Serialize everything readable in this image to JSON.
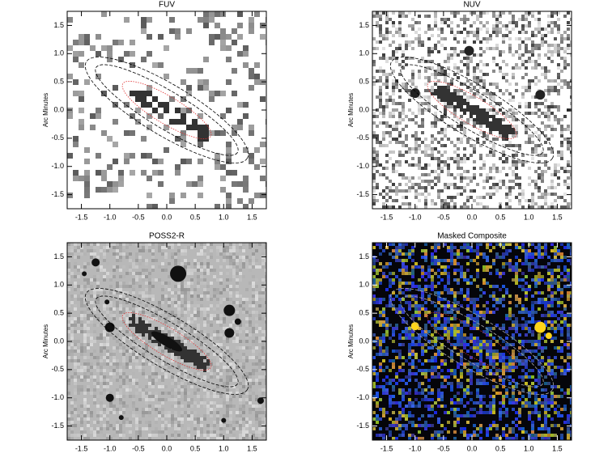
{
  "chart_data": [
    {
      "type": "image",
      "title": "FUV",
      "ylabel": "Arc Minutes",
      "xlim": [
        -1.75,
        1.75
      ],
      "ylim": [
        -1.75,
        1.75
      ],
      "xticks": [
        -1.5,
        {
          "value": -1,
          "label": "-1.0"
        },
        -0.5,
        {
          "value": 0,
          "label": "0.0"
        },
        0.5,
        {
          "value": 1,
          "label": "1.0"
        },
        1.5
      ],
      "yticks": [
        -1.5,
        {
          "value": -1,
          "label": "-1.0"
        },
        -0.5,
        {
          "value": 0,
          "label": "0.0"
        },
        0.5,
        {
          "value": 1,
          "label": "1.0"
        },
        1.5
      ]
    },
    {
      "type": "image",
      "title": "NUV",
      "ylabel": "Arc Minutes",
      "xlim": [
        -1.75,
        1.75
      ],
      "ylim": [
        -1.75,
        1.75
      ],
      "xticks": [
        -1.5,
        {
          "value": -1,
          "label": "-1.0"
        },
        -0.5,
        {
          "value": 0,
          "label": "0.0"
        },
        0.5,
        {
          "value": 1,
          "label": "1.0"
        },
        1.5
      ],
      "yticks": [
        -1.5,
        {
          "value": -1,
          "label": "-1.0"
        },
        -0.5,
        {
          "value": 0,
          "label": "0.0"
        },
        0.5,
        {
          "value": 1,
          "label": "1.0"
        },
        1.5
      ]
    },
    {
      "type": "image",
      "title": "POSS2-R",
      "ylabel": "Arc Minutes",
      "xlim": [
        -1.75,
        1.75
      ],
      "ylim": [
        -1.75,
        1.75
      ],
      "xticks": [
        -1.5,
        {
          "value": -1,
          "label": "-1.0"
        },
        -0.5,
        {
          "value": 0,
          "label": "0.0"
        },
        0.5,
        {
          "value": 1,
          "label": "1.0"
        },
        1.5
      ],
      "yticks": [
        -1.5,
        {
          "value": -1,
          "label": "-1.0"
        },
        -0.5,
        {
          "value": 0,
          "label": "0.0"
        },
        0.5,
        {
          "value": 1,
          "label": "1.0"
        },
        1.5
      ]
    },
    {
      "type": "image",
      "title": "Masked Composite",
      "ylabel": "Arc Minutes",
      "xlim": [
        -1.75,
        1.75
      ],
      "ylim": [
        -1.75,
        1.75
      ],
      "xticks": [
        -1.5,
        {
          "value": -1,
          "label": "-1.0"
        },
        -0.5,
        {
          "value": 0,
          "label": "0.0"
        },
        0.5,
        {
          "value": 1,
          "label": "1.0"
        },
        1.5
      ],
      "yticks": [
        -1.5,
        {
          "value": -1,
          "label": "-1.0"
        },
        -0.5,
        {
          "value": 0,
          "label": "0.0"
        },
        0.5,
        {
          "value": 1,
          "label": "1.0"
        },
        1.5
      ]
    }
  ]
}
